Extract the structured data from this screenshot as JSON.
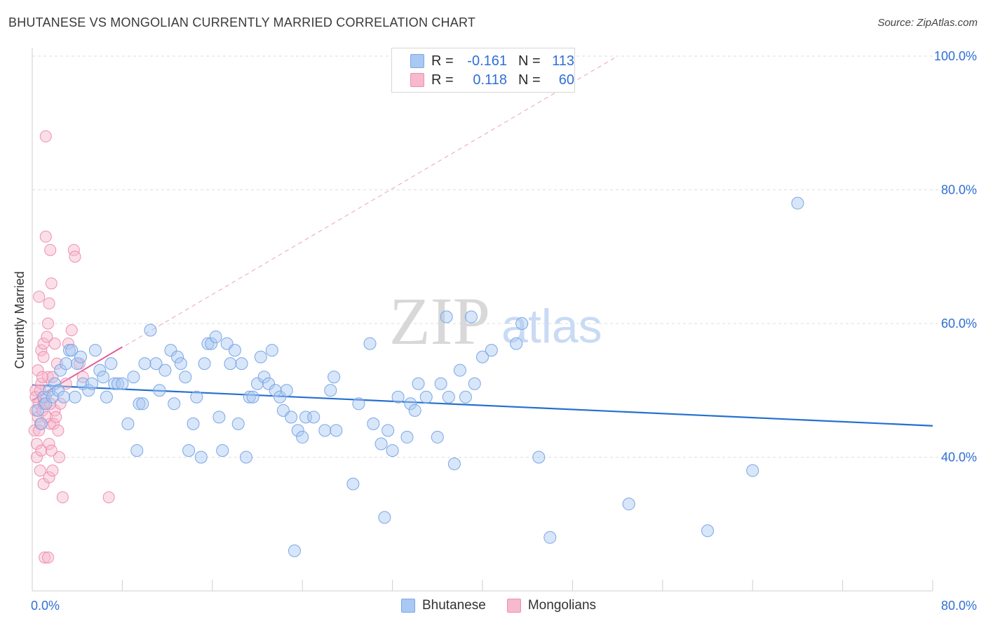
{
  "title": "BHUTANESE VS MONGOLIAN CURRENTLY MARRIED CORRELATION CHART",
  "source": "Source: ZipAtlas.com",
  "watermark": {
    "zip": "ZIP",
    "atlas": "atlas"
  },
  "legend": {
    "rows": [
      {
        "r_label": "R =",
        "r_value": "-0.161",
        "n_label": "N =",
        "n_value": "113"
      },
      {
        "r_label": "R =",
        "r_value": "0.118",
        "n_label": "N =",
        "n_value": "60"
      }
    ]
  },
  "bottom_legend": {
    "bhutanese": "Bhutanese",
    "mongolians": "Mongolians"
  },
  "colors": {
    "blue_fill": "#a9c8f2",
    "blue_stroke": "#7aa7e6",
    "blue_line": "#2470d0",
    "pink_fill": "#f6b9cd",
    "pink_stroke": "#ee8fb0",
    "pink_line": "#e0609a",
    "axis_text": "#2f6fd6",
    "grid": "#dedede"
  },
  "chart_data": {
    "type": "scatter",
    "title": "BHUTANESE VS MONGOLIAN CURRENTLY MARRIED CORRELATION CHART",
    "xlabel": "",
    "ylabel": "Currently Married",
    "xlim": [
      0,
      80
    ],
    "ylim": [
      20,
      100
    ],
    "x_tick_labels": [
      "0.0%",
      "80.0%"
    ],
    "y_ticks": [
      40,
      60,
      80,
      100
    ],
    "y_tick_labels": [
      "40.0%",
      "60.0%",
      "80.0%",
      "100.0%"
    ],
    "series": [
      {
        "name": "Bhutanese",
        "r": -0.161,
        "n": 113,
        "trend": {
          "x": [
            0,
            80
          ],
          "y": [
            50.8,
            44.7
          ]
        },
        "points": [
          [
            0.5,
            47
          ],
          [
            0.8,
            45
          ],
          [
            1,
            49
          ],
          [
            1.2,
            48
          ],
          [
            1.5,
            50
          ],
          [
            1.8,
            49
          ],
          [
            2,
            51
          ],
          [
            2.3,
            50
          ],
          [
            2.5,
            53
          ],
          [
            2.8,
            49
          ],
          [
            3,
            54
          ],
          [
            3.3,
            56
          ],
          [
            3.5,
            56
          ],
          [
            3.8,
            49
          ],
          [
            4,
            54
          ],
          [
            4.3,
            55
          ],
          [
            4.5,
            51
          ],
          [
            5,
            50
          ],
          [
            5.3,
            51
          ],
          [
            5.6,
            56
          ],
          [
            6,
            53
          ],
          [
            6.3,
            52
          ],
          [
            6.6,
            49
          ],
          [
            7,
            54
          ],
          [
            7.3,
            51
          ],
          [
            7.6,
            51
          ],
          [
            8,
            51
          ],
          [
            8.5,
            45
          ],
          [
            9,
            52
          ],
          [
            9.3,
            41
          ],
          [
            9.5,
            48
          ],
          [
            9.8,
            48
          ],
          [
            10,
            54
          ],
          [
            10.5,
            59
          ],
          [
            11,
            54
          ],
          [
            11.3,
            50
          ],
          [
            11.8,
            53
          ],
          [
            12.3,
            56
          ],
          [
            12.6,
            48
          ],
          [
            12.9,
            55
          ],
          [
            13.2,
            54
          ],
          [
            13.6,
            52
          ],
          [
            13.9,
            41
          ],
          [
            14.3,
            45
          ],
          [
            14.6,
            49
          ],
          [
            15,
            40
          ],
          [
            15.3,
            54
          ],
          [
            15.6,
            57
          ],
          [
            15.9,
            57
          ],
          [
            16.3,
            58
          ],
          [
            16.6,
            46
          ],
          [
            16.9,
            41
          ],
          [
            17.3,
            57
          ],
          [
            17.6,
            54
          ],
          [
            18,
            56
          ],
          [
            18.3,
            45
          ],
          [
            18.6,
            54
          ],
          [
            19,
            40
          ],
          [
            19.3,
            49
          ],
          [
            19.6,
            49
          ],
          [
            20,
            51
          ],
          [
            20.3,
            55
          ],
          [
            20.6,
            52
          ],
          [
            21,
            51
          ],
          [
            21.3,
            56
          ],
          [
            21.6,
            50
          ],
          [
            22,
            49
          ],
          [
            22.3,
            47
          ],
          [
            22.6,
            50
          ],
          [
            23,
            46
          ],
          [
            23.3,
            26
          ],
          [
            23.6,
            44
          ],
          [
            24,
            43
          ],
          [
            24.3,
            46
          ],
          [
            25,
            46
          ],
          [
            26,
            44
          ],
          [
            26.5,
            50
          ],
          [
            26.8,
            52
          ],
          [
            27,
            44
          ],
          [
            28.5,
            36
          ],
          [
            29,
            48
          ],
          [
            30,
            57
          ],
          [
            30.3,
            45
          ],
          [
            31,
            42
          ],
          [
            31.3,
            31
          ],
          [
            31.6,
            44
          ],
          [
            32,
            41
          ],
          [
            32.5,
            49
          ],
          [
            33.3,
            43
          ],
          [
            33.6,
            48
          ],
          [
            34,
            47
          ],
          [
            34.3,
            51
          ],
          [
            35,
            49
          ],
          [
            36,
            43
          ],
          [
            36.3,
            51
          ],
          [
            36.8,
            61
          ],
          [
            37,
            49
          ],
          [
            37.5,
            39
          ],
          [
            38,
            53
          ],
          [
            38.5,
            49
          ],
          [
            39,
            61
          ],
          [
            39.3,
            51
          ],
          [
            40,
            55
          ],
          [
            40.8,
            56
          ],
          [
            43,
            57
          ],
          [
            43.5,
            60
          ],
          [
            45,
            40
          ],
          [
            46,
            28
          ],
          [
            53,
            33
          ],
          [
            60,
            29
          ],
          [
            64,
            38
          ],
          [
            68,
            78
          ]
        ]
      },
      {
        "name": "Mongolians",
        "r": 0.118,
        "n": 60,
        "trend": {
          "x": [
            0,
            8
          ],
          "y": [
            48.5,
            56.5
          ]
        },
        "trend_extended": {
          "x": [
            0,
            52
          ],
          "y": [
            48.5,
            100
          ]
        },
        "points": [
          [
            0.2,
            44
          ],
          [
            0.3,
            47
          ],
          [
            0.3,
            50
          ],
          [
            0.4,
            42
          ],
          [
            0.5,
            46
          ],
          [
            0.5,
            53
          ],
          [
            0.6,
            48
          ],
          [
            0.6,
            64
          ],
          [
            0.7,
            38
          ],
          [
            0.7,
            45
          ],
          [
            0.8,
            51
          ],
          [
            0.8,
            56
          ],
          [
            0.9,
            47
          ],
          [
            1,
            48
          ],
          [
            1,
            57
          ],
          [
            1,
            36
          ],
          [
            1.1,
            25
          ],
          [
            1.2,
            49
          ],
          [
            1.2,
            73
          ],
          [
            1.3,
            58
          ],
          [
            1.4,
            52
          ],
          [
            1.4,
            60
          ],
          [
            1.5,
            42
          ],
          [
            1.5,
            63
          ],
          [
            1.6,
            45
          ],
          [
            1.6,
            71
          ],
          [
            1.7,
            66
          ],
          [
            1.8,
            52
          ],
          [
            2,
            47
          ],
          [
            2,
            57
          ],
          [
            2.2,
            54
          ],
          [
            2.5,
            48
          ],
          [
            2.7,
            34
          ],
          [
            3,
            51
          ],
          [
            3.2,
            57
          ],
          [
            3.5,
            59
          ],
          [
            3.7,
            71
          ],
          [
            3.8,
            70
          ],
          [
            4.2,
            54
          ],
          [
            4.5,
            52
          ],
          [
            0.4,
            40
          ],
          [
            0.6,
            44
          ],
          [
            0.8,
            41
          ],
          [
            0.9,
            52
          ],
          [
            1,
            55
          ],
          [
            1.1,
            48
          ],
          [
            1.3,
            46
          ],
          [
            1.5,
            37
          ],
          [
            1.7,
            41
          ],
          [
            1.8,
            38
          ],
          [
            1.9,
            45
          ],
          [
            2.1,
            46
          ],
          [
            2.3,
            44
          ],
          [
            2.4,
            40
          ],
          [
            1.2,
            88
          ],
          [
            1.4,
            25
          ],
          [
            0.3,
            49
          ],
          [
            0.7,
            50
          ],
          [
            6.8,
            34
          ],
          [
            1.6,
            48
          ]
        ]
      }
    ]
  }
}
